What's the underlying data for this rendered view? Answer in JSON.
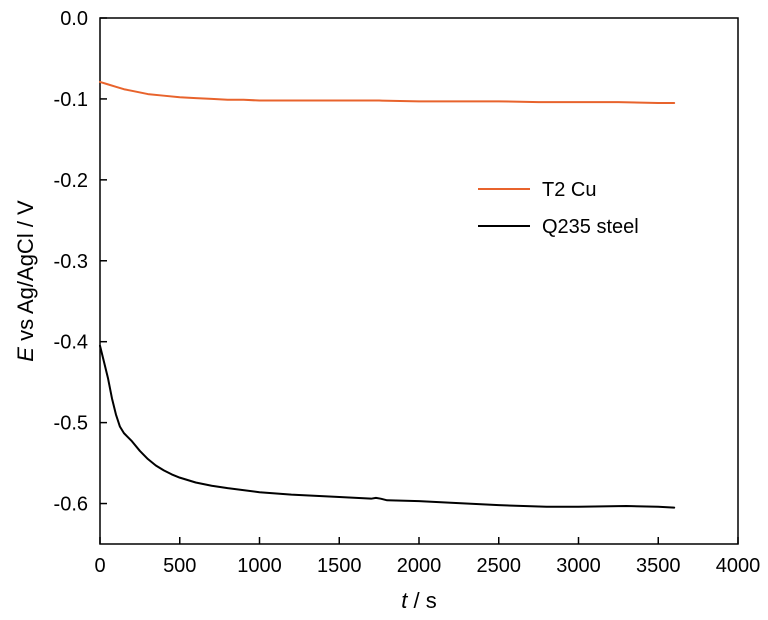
{
  "chart_data": {
    "type": "line",
    "xlabel": {
      "symbol": "t",
      "unit": " / s"
    },
    "ylabel": {
      "symbol": "E",
      "rest": " vs Ag/AgCl / V"
    },
    "xlim": [
      0,
      4000
    ],
    "ylim": [
      -0.65,
      0.0
    ],
    "xticks": [
      "0",
      "500",
      "1000",
      "1500",
      "2000",
      "2500",
      "3000",
      "3500",
      "4000"
    ],
    "yticks": [
      "0.0",
      "-0.1",
      "-0.2",
      "-0.3",
      "-0.4",
      "-0.5",
      "-0.6"
    ],
    "grid": false,
    "legend_position": "right, upper-middle",
    "series": [
      {
        "name": "T2 Cu",
        "color": "#e8632c",
        "x": [
          0,
          50,
          100,
          150,
          200,
          250,
          300,
          400,
          500,
          600,
          700,
          800,
          900,
          1000,
          1200,
          1500,
          1750,
          2000,
          2250,
          2500,
          2750,
          3000,
          3250,
          3500,
          3600
        ],
        "y": [
          -0.079,
          -0.082,
          -0.085,
          -0.088,
          -0.09,
          -0.092,
          -0.094,
          -0.096,
          -0.098,
          -0.099,
          -0.1,
          -0.101,
          -0.101,
          -0.102,
          -0.102,
          -0.102,
          -0.102,
          -0.103,
          -0.103,
          -0.103,
          -0.104,
          -0.104,
          -0.104,
          -0.105,
          -0.105
        ]
      },
      {
        "name": "Q235 steel",
        "color": "#000000",
        "x": [
          0,
          25,
          50,
          75,
          100,
          125,
          150,
          175,
          200,
          250,
          300,
          350,
          400,
          450,
          500,
          600,
          700,
          800,
          1000,
          1200,
          1500,
          1700,
          1730,
          1760,
          1800,
          2000,
          2200,
          2500,
          2800,
          3000,
          3300,
          3500,
          3600
        ],
        "y": [
          -0.405,
          -0.425,
          -0.445,
          -0.47,
          -0.49,
          -0.505,
          -0.513,
          -0.518,
          -0.523,
          -0.535,
          -0.545,
          -0.553,
          -0.559,
          -0.564,
          -0.568,
          -0.574,
          -0.578,
          -0.581,
          -0.586,
          -0.589,
          -0.592,
          -0.594,
          -0.593,
          -0.594,
          -0.596,
          -0.597,
          -0.599,
          -0.602,
          -0.604,
          -0.604,
          -0.603,
          -0.604,
          -0.605
        ]
      }
    ]
  }
}
